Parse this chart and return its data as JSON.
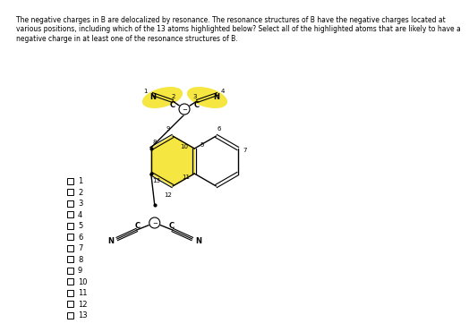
{
  "title_text": "The negative charges in B are delocalized by resonance. The resonance structures of B have the negative charges located at\nvarious positions, including which of the 13 atoms highlighted below? Select all of the highlighted atoms that are likely to have a\nnegative charge in at least one of the resonance structures of B.",
  "background_color": "#ffffff",
  "checkbox_labels": [
    "1",
    "2",
    "3",
    "4",
    "5",
    "6",
    "7",
    "8",
    "9",
    "10",
    "11",
    "12",
    "13"
  ],
  "text_color": "#000000",
  "yellow_color": "#f5e642"
}
